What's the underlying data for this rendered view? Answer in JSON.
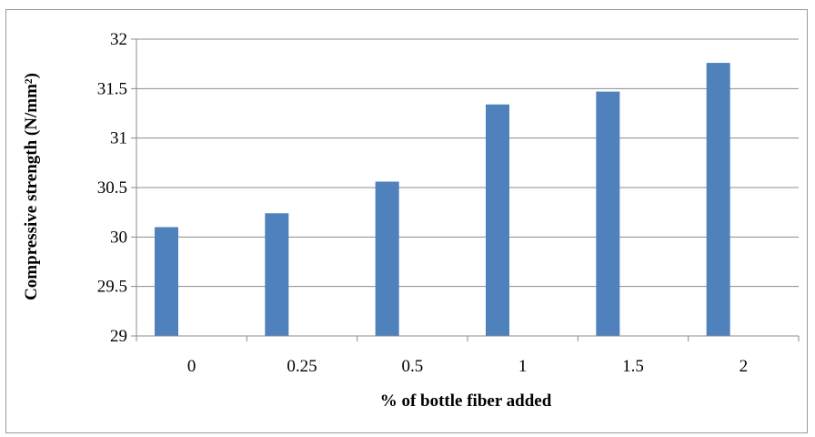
{
  "chart_data": {
    "type": "bar",
    "categories": [
      "0",
      "0.25",
      "0.5",
      "1",
      "1.5",
      "2"
    ],
    "values": [
      30.1,
      30.24,
      30.56,
      31.34,
      31.47,
      31.76
    ],
    "title": "",
    "xlabel": "% of bottle fiber added",
    "ylabel": "Compressive strength (N/mm²)",
    "ylim": [
      29,
      32
    ],
    "yticks": [
      "29",
      "29.5",
      "30",
      "30.5",
      "31",
      "31.5",
      "32"
    ],
    "grid": true,
    "legend": "none",
    "colors": {
      "bar": "#4f81bd",
      "grid": "#8c8c8c",
      "axis": "#8c8c8c"
    }
  }
}
